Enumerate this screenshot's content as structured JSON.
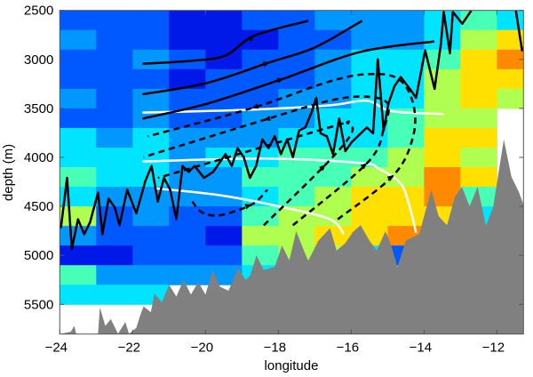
{
  "chart_data": {
    "type": "heatmap",
    "title": "",
    "xlabel": "longitude",
    "ylabel": "depth (m)",
    "xlim": [
      -24,
      -11.27
    ],
    "ylim": [
      5803,
      2500
    ],
    "y_reversed": true,
    "grid": false,
    "xticks": [
      -24,
      -22,
      -20,
      -18,
      -16,
      -14,
      -12
    ],
    "xtick_labels": [
      "−24",
      "−22",
      "−20",
      "−18",
      "−16",
      "−14",
      "−12"
    ],
    "yticks": [
      2500,
      3000,
      3500,
      4000,
      4500,
      5000,
      5500
    ],
    "ytick_labels": [
      "2500",
      "3000",
      "3500",
      "4000",
      "4500",
      "5000",
      "5500"
    ],
    "colormap": "jet",
    "colors": [
      "#00008f",
      "#0018e8",
      "#0058ff",
      "#0098ff",
      "#00e4ff",
      "#48ffb8",
      "#b0ff50",
      "#ffe000",
      "#ff8a00",
      "#e01000"
    ],
    "bathymetry_color": "#808080",
    "heatmap": {
      "lon_edges_start": -24,
      "lon_step": 1,
      "depth_start": 2500,
      "depth_step": 200,
      "columns": [
        [
          2,
          3,
          2,
          2,
          3,
          2,
          4,
          4,
          5,
          4,
          6,
          3,
          1,
          5,
          4
        ],
        [
          2,
          2,
          2,
          2,
          2,
          2,
          3,
          4,
          4,
          3,
          2,
          2,
          1,
          3,
          4
        ],
        [
          2,
          2,
          3,
          2,
          3,
          3,
          4,
          4,
          4,
          3,
          3,
          2,
          2,
          3,
          4
        ],
        [
          1,
          1,
          2,
          1,
          2,
          2,
          3,
          3,
          3,
          3,
          2,
          2,
          2,
          3,
          null
        ],
        [
          1,
          1,
          1,
          2,
          2,
          2,
          3,
          4,
          3,
          3,
          2,
          1,
          2,
          3,
          null
        ],
        [
          2,
          1,
          2,
          2,
          2,
          3,
          3,
          4,
          5,
          4,
          5,
          6,
          5,
          4,
          null
        ],
        [
          2,
          2,
          2,
          2,
          3,
          3,
          4,
          5,
          5,
          5,
          6,
          6,
          6,
          null,
          null
        ],
        [
          3,
          2,
          3,
          3,
          3,
          4,
          4,
          5,
          5,
          6,
          6,
          7,
          6,
          null,
          null
        ],
        [
          3,
          3,
          4,
          4,
          4,
          4,
          4,
          5,
          6,
          7,
          7,
          7,
          4,
          null,
          null
        ],
        [
          3,
          3,
          4,
          4,
          4,
          5,
          5,
          6,
          6,
          7,
          7,
          8,
          2,
          null,
          null
        ],
        [
          4,
          4,
          5,
          6,
          6,
          6,
          7,
          7,
          8,
          8,
          7,
          4,
          null,
          null,
          null
        ],
        [
          5,
          6,
          7,
          7,
          7,
          6,
          7,
          6,
          7,
          5,
          4,
          null,
          null,
          null,
          null
        ],
        [
          4,
          7,
          8,
          7,
          6,
          null,
          null,
          null,
          null,
          null,
          null,
          null,
          null,
          null,
          null
        ]
      ]
    },
    "bathymetry": [
      [
        -24,
        5803
      ],
      [
        -23.7,
        5780
      ],
      [
        -23.6,
        5720
      ],
      [
        -23.55,
        5800
      ],
      [
        -22.95,
        5803
      ],
      [
        -22.9,
        5530
      ],
      [
        -22.75,
        5720
      ],
      [
        -22.6,
        5650
      ],
      [
        -22.4,
        5800
      ],
      [
        -22.2,
        5680
      ],
      [
        -22.1,
        5800
      ],
      [
        -21.9,
        5740
      ],
      [
        -21.8,
        5620
      ],
      [
        -21.7,
        5520
      ],
      [
        -21.5,
        5580
      ],
      [
        -21.4,
        5390
      ],
      [
        -21.2,
        5480
      ],
      [
        -21.0,
        5300
      ],
      [
        -20.8,
        5420
      ],
      [
        -20.6,
        5250
      ],
      [
        -20.4,
        5400
      ],
      [
        -20.2,
        5270
      ],
      [
        -20.0,
        5400
      ],
      [
        -19.8,
        5150
      ],
      [
        -19.6,
        5320
      ],
      [
        -19.37,
        5360
      ],
      [
        -19.1,
        5130
      ],
      [
        -18.9,
        5250
      ],
      [
        -18.78,
        5210
      ],
      [
        -18.6,
        5000
      ],
      [
        -18.4,
        5150
      ],
      [
        -18.1,
        5117
      ],
      [
        -17.9,
        4900
      ],
      [
        -17.7,
        5050
      ],
      [
        -17.51,
        4753
      ],
      [
        -17.3,
        4950
      ],
      [
        -17.18,
        5055
      ],
      [
        -16.9,
        4850
      ],
      [
        -16.58,
        4722
      ],
      [
        -16.4,
        4950
      ],
      [
        -16.16,
        4874
      ],
      [
        -15.95,
        4760
      ],
      [
        -15.74,
        4692
      ],
      [
        -15.5,
        4850
      ],
      [
        -15.3,
        4950
      ],
      [
        -15.06,
        4753
      ],
      [
        -14.9,
        4900
      ],
      [
        -14.73,
        5117
      ],
      [
        -14.5,
        4850
      ],
      [
        -14.13,
        4784
      ],
      [
        -14.0,
        4600
      ],
      [
        -13.8,
        4330
      ],
      [
        -13.6,
        4600
      ],
      [
        -13.37,
        4692
      ],
      [
        -13.15,
        4400
      ],
      [
        -12.96,
        4300
      ],
      [
        -12.75,
        4500
      ],
      [
        -12.53,
        4300
      ],
      [
        -12.3,
        4700
      ],
      [
        -12.1,
        4500
      ],
      [
        -11.81,
        3816
      ],
      [
        -11.6,
        4200
      ],
      [
        -11.4,
        4350
      ],
      [
        -11.27,
        4481
      ]
    ],
    "noisy_line": [
      [
        [
          -23.97,
          4723
        ],
        [
          -23.8,
          4209
        ],
        [
          -23.67,
          4935
        ],
        [
          -23.5,
          4632
        ],
        [
          -23.33,
          4784
        ],
        [
          -23.17,
          4663
        ],
        [
          -22.95,
          4360
        ],
        [
          -22.83,
          4784
        ],
        [
          -22.66,
          4421
        ],
        [
          -22.49,
          4511
        ],
        [
          -22.36,
          4693
        ],
        [
          -22.15,
          4330
        ],
        [
          -21.9,
          4572
        ],
        [
          -21.65,
          4239
        ],
        [
          -21.48,
          4088
        ],
        [
          -21.31,
          4451
        ],
        [
          -21.14,
          4209
        ],
        [
          -20.97,
          4330
        ],
        [
          -20.8,
          4632
        ],
        [
          -20.63,
          4088
        ],
        [
          -20.46,
          4148
        ],
        [
          -20.3,
          4088
        ],
        [
          -20.04,
          4209
        ],
        [
          -19.79,
          4148
        ],
        [
          -19.45,
          3967
        ],
        [
          -19.28,
          4088
        ],
        [
          -19.12,
          3906
        ],
        [
          -18.95,
          3997
        ],
        [
          -18.78,
          4209
        ],
        [
          -18.61,
          4088
        ],
        [
          -18.44,
          3816
        ],
        [
          -18.27,
          3906
        ],
        [
          -18.1,
          3785
        ],
        [
          -17.93,
          3967
        ],
        [
          -17.76,
          3816
        ],
        [
          -17.6,
          3997
        ],
        [
          -17.43,
          3725
        ],
        [
          -17.26,
          3695
        ],
        [
          -17.09,
          3543
        ],
        [
          -16.96,
          3392
        ],
        [
          -16.84,
          3755
        ],
        [
          -16.67,
          3785
        ],
        [
          -16.5,
          3967
        ],
        [
          -16.33,
          3604
        ],
        [
          -16.16,
          3937
        ],
        [
          -15.99,
          3846
        ],
        [
          -15.82,
          3785
        ],
        [
          -15.57,
          3695
        ],
        [
          -15.4,
          3755
        ],
        [
          -15.27,
          2999
        ],
        [
          -15.11,
          3725
        ],
        [
          -14.98,
          3453
        ],
        [
          -14.81,
          3271
        ],
        [
          -14.64,
          3180
        ],
        [
          -14.39,
          3301
        ],
        [
          -14.22,
          3392
        ],
        [
          -13.97,
          2908
        ],
        [
          -13.71,
          3301
        ],
        [
          -13.54,
          2848
        ],
        [
          -13.46,
          2515
        ],
        [
          -13.29,
          2938
        ],
        [
          -13.21,
          2515
        ],
        [
          -12.95,
          2636
        ],
        [
          -12.7,
          2500
        ]
      ],
      [
        [
          -11.48,
          2500
        ],
        [
          -11.31,
          2908
        ],
        [
          -11.18,
          2848
        ]
      ]
    ],
    "solid_streamlines": [
      {
        "points": [
          [
            -21.73,
            3044
          ],
          [
            -20.38,
            3014
          ],
          [
            -19.45,
            2960
          ],
          [
            -18.65,
            2757
          ],
          [
            -17.18,
            2606
          ]
        ],
        "arrows": [
          3
        ]
      },
      {
        "points": [
          [
            -21.73,
            3356
          ],
          [
            -19.96,
            3241
          ],
          [
            -18.23,
            3029
          ],
          [
            -17.0,
            2878
          ],
          [
            -15.7,
            2606
          ]
        ],
        "arrows": [
          2
        ]
      },
      {
        "points": [
          [
            -21.73,
            3604
          ],
          [
            -19.96,
            3453
          ],
          [
            -17.85,
            3195
          ],
          [
            -15.74,
            2923
          ],
          [
            -13.72,
            2817
          ]
        ],
        "arrows": [
          2
        ]
      }
    ],
    "dashed_streamlines": [
      {
        "points": [
          [
            -16.37,
            4632
          ],
          [
            -14.83,
            4179
          ],
          [
            -14.3,
            3785
          ],
          [
            -14.3,
            3450
          ],
          [
            -14.7,
            3200
          ],
          [
            -15.5,
            3150
          ],
          [
            -16.6,
            3226
          ],
          [
            -18.73,
            3498
          ],
          [
            -21.58,
            3785
          ]
        ],
        "arrows": [
          1,
          7
        ]
      },
      {
        "points": [
          [
            -17.6,
            4693
          ],
          [
            -15.56,
            4057
          ],
          [
            -15.1,
            3700
          ],
          [
            -15.0,
            3450
          ],
          [
            -15.6,
            3380
          ],
          [
            -16.6,
            3422
          ],
          [
            -18.4,
            3619
          ],
          [
            -21.7,
            3997
          ]
        ],
        "arrows": [
          1,
          6
        ]
      },
      {
        "points": [
          [
            -18.4,
            4693
          ],
          [
            -16.7,
            4072
          ],
          [
            -16.0,
            3760
          ],
          [
            -16.1,
            3650
          ],
          [
            -16.6,
            3694
          ],
          [
            -21.3,
            4209
          ]
        ],
        "arrows": [
          1
        ]
      },
      {
        "points": [
          [
            -20.36,
            4451
          ],
          [
            -20.1,
            4560
          ],
          [
            -19.6,
            4590
          ],
          [
            -18.73,
            4481
          ],
          [
            -18.3,
            4330
          ]
        ],
        "arrows": [
          3
        ]
      }
    ],
    "white_lines": [
      [
        [
          -21.73,
          3543
        ],
        [
          -18.78,
          3513
        ],
        [
          -16.58,
          3468
        ],
        [
          -15.57,
          3422
        ],
        [
          -14.89,
          3528
        ],
        [
          -13.46,
          3558
        ]
      ],
      [
        [
          -21.73,
          4042
        ],
        [
          -18.27,
          4012
        ],
        [
          -15.74,
          4058
        ],
        [
          -15.23,
          4118
        ],
        [
          -14.64,
          4269
        ],
        [
          -14.39,
          4511
        ],
        [
          -14.22,
          4769
        ]
      ],
      [
        [
          -21.39,
          4315
        ],
        [
          -19.54,
          4390
        ],
        [
          -17.85,
          4511
        ],
        [
          -16.58,
          4632
        ],
        [
          -16.2,
          4784
        ]
      ]
    ]
  }
}
